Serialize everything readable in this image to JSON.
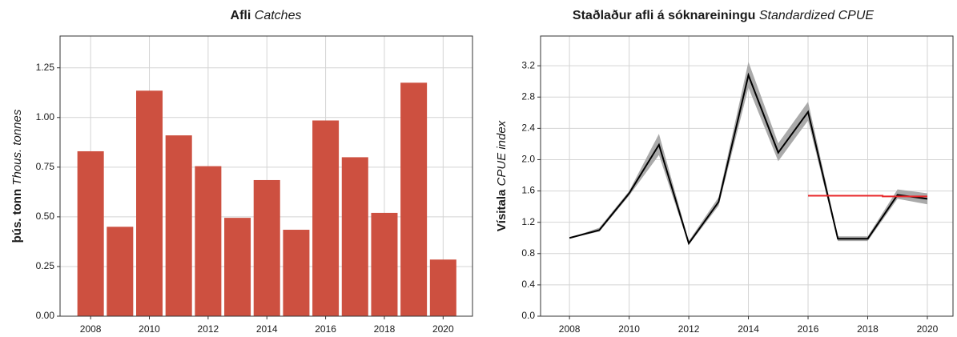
{
  "chart_data": [
    {
      "type": "bar",
      "title": "Afli",
      "title_en": "Catches",
      "ylabel": "þús. tonn",
      "ylabel_en": "Thous. tonnes",
      "x": [
        2008,
        2009,
        2010,
        2011,
        2012,
        2013,
        2014,
        2015,
        2016,
        2017,
        2018,
        2019,
        2020
      ],
      "values": [
        0.83,
        0.45,
        1.135,
        0.91,
        0.755,
        0.495,
        0.685,
        0.435,
        0.985,
        0.8,
        0.52,
        1.175,
        0.285
      ],
      "color": "#cd5040",
      "xlim": [
        2006.96,
        2021.0
      ],
      "xticks": [
        2008,
        2010,
        2012,
        2014,
        2016,
        2018,
        2020
      ],
      "ylim": [
        0,
        1.41
      ],
      "yticks": [
        {
          "value": 0,
          "label": "0.00"
        },
        {
          "value": 0.25,
          "label": "0.25"
        },
        {
          "value": 0.5,
          "label": "0.50"
        },
        {
          "value": 0.75,
          "label": "0.75"
        },
        {
          "value": 1,
          "label": "1.00"
        },
        {
          "value": 1.25,
          "label": "1.25"
        }
      ],
      "grid": true
    },
    {
      "type": "line",
      "title": "Staðlaður afli á sóknareiningu",
      "title_en": "Standardized CPUE",
      "ylabel": "Vísitala",
      "ylabel_en": "CPUE index",
      "series": [
        {
          "color": "#000000",
          "band_color": "#aaaaaa",
          "x": [
            2008,
            2009,
            2010,
            2011,
            2012,
            2013,
            2014,
            2015,
            2016,
            2017,
            2018,
            2019,
            2020
          ],
          "values": [
            1.0,
            1.1,
            1.57,
            2.19,
            0.93,
            1.46,
            3.08,
            2.09,
            2.61,
            0.99,
            0.99,
            1.55,
            1.5
          ],
          "lower": [
            1.0,
            1.08,
            1.54,
            2.06,
            0.91,
            1.41,
            2.92,
            1.98,
            2.5,
            0.96,
            0.96,
            1.5,
            1.43
          ],
          "upper": [
            1.0,
            1.13,
            1.6,
            2.33,
            0.96,
            1.52,
            3.25,
            2.21,
            2.74,
            1.02,
            1.02,
            1.62,
            1.57
          ]
        },
        {
          "color": "#e8282b",
          "x": [
            2016,
            2018.5,
            2018.5,
            2020
          ],
          "values": [
            1.54,
            1.54,
            1.53,
            1.53
          ]
        }
      ],
      "xlim": [
        2007.03,
        2020.86
      ],
      "xticks": [
        2008,
        2010,
        2012,
        2014,
        2016,
        2018,
        2020
      ],
      "ylim": [
        0,
        3.58
      ],
      "yticks": [
        {
          "value": 0,
          "label": "0.0"
        },
        0.4,
        0.8,
        1.2,
        1.6,
        {
          "value": 2,
          "label": "2.0"
        },
        2.4,
        2.8,
        3.2
      ],
      "grid": true
    }
  ]
}
